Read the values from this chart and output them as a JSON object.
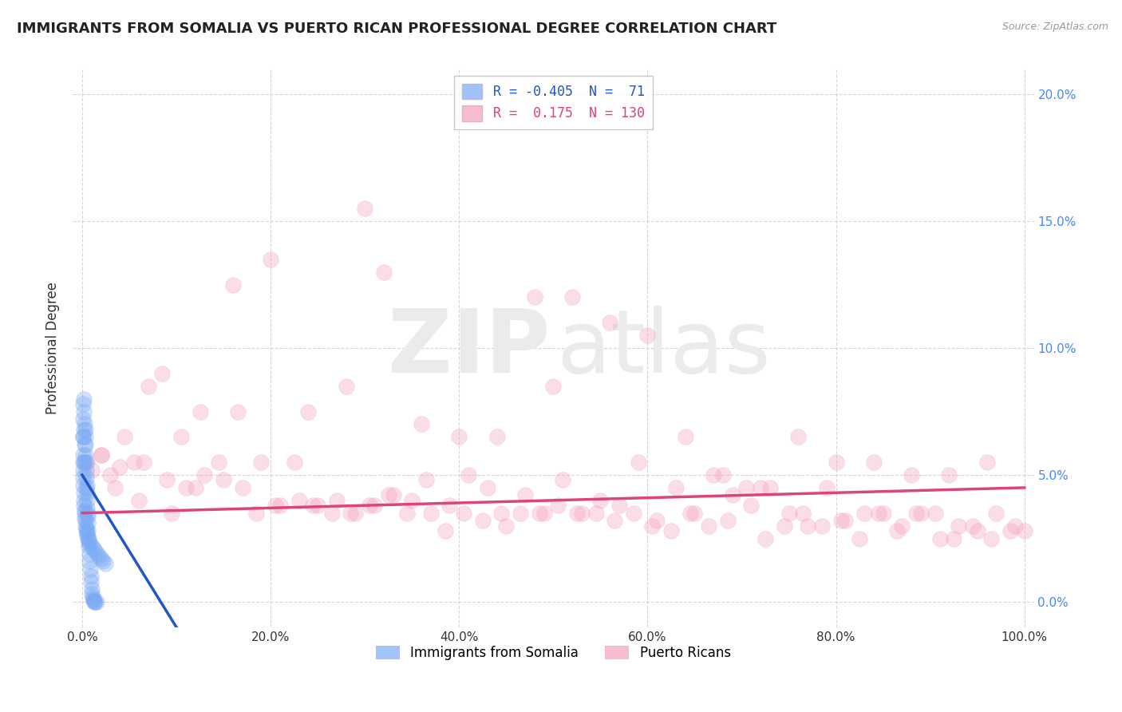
{
  "title": "IMMIGRANTS FROM SOMALIA VS PUERTO RICAN PROFESSIONAL DEGREE CORRELATION CHART",
  "source": "Source: ZipAtlas.com",
  "ylabel": "Professional Degree",
  "xlim": [
    -1,
    101
  ],
  "ylim": [
    -1,
    21
  ],
  "xticks": [
    0,
    20,
    40,
    60,
    80,
    100
  ],
  "xticklabels": [
    "0.0%",
    "20.0%",
    "40.0%",
    "60.0%",
    "80.0%",
    "100.0%"
  ],
  "yticks": [
    0,
    5,
    10,
    15,
    20
  ],
  "yticklabels": [
    "0.0%",
    "5.0%",
    "10.0%",
    "15.0%",
    "20.0%"
  ],
  "blue_R": "-0.405",
  "blue_N": "71",
  "pink_R": "0.175",
  "pink_N": "130",
  "legend_labels": [
    "Immigrants from Somalia",
    "Puerto Ricans"
  ],
  "blue_color": "#7aaaf5",
  "pink_color": "#f5a0bc",
  "blue_line_color": "#2255cc",
  "pink_line_color": "#dd4477",
  "blue_scatter_x": [
    0.05,
    0.08,
    0.1,
    0.12,
    0.15,
    0.18,
    0.2,
    0.22,
    0.25,
    0.28,
    0.3,
    0.32,
    0.35,
    0.38,
    0.4,
    0.42,
    0.45,
    0.48,
    0.5,
    0.52,
    0.55,
    0.58,
    0.6,
    0.62,
    0.65,
    0.7,
    0.75,
    0.8,
    0.85,
    0.9,
    0.95,
    1.0,
    1.05,
    1.1,
    1.15,
    1.2,
    1.25,
    1.3,
    1.4,
    1.5,
    0.05,
    0.08,
    0.1,
    0.12,
    0.15,
    0.18,
    0.2,
    0.22,
    0.25,
    0.28,
    0.3,
    0.35,
    0.4,
    0.45,
    0.5,
    0.55,
    0.6,
    0.7,
    0.8,
    1.0,
    1.2,
    1.4,
    1.6,
    1.8,
    2.0,
    2.2,
    2.5,
    0.1,
    0.2,
    0.4,
    0.6
  ],
  "blue_scatter_y": [
    7.8,
    6.5,
    7.2,
    5.8,
    8.0,
    6.8,
    7.5,
    6.2,
    7.0,
    5.5,
    6.8,
    6.5,
    6.2,
    5.8,
    5.5,
    5.2,
    4.9,
    4.6,
    4.3,
    4.0,
    3.7,
    3.4,
    3.1,
    2.8,
    2.5,
    2.2,
    1.9,
    1.6,
    1.3,
    1.0,
    0.8,
    0.5,
    0.3,
    0.2,
    0.1,
    0.05,
    0.02,
    0.01,
    0.0,
    0.0,
    5.5,
    5.2,
    4.9,
    4.6,
    4.3,
    4.0,
    3.8,
    3.6,
    3.5,
    3.3,
    3.2,
    3.0,
    2.9,
    2.8,
    2.7,
    2.6,
    2.5,
    2.4,
    2.3,
    2.2,
    2.1,
    2.0,
    1.9,
    1.8,
    1.7,
    1.6,
    1.5,
    6.5,
    5.5,
    4.5,
    3.5
  ],
  "pink_scatter_x": [
    0.5,
    1.0,
    2.0,
    3.0,
    4.0,
    5.5,
    7.0,
    9.0,
    11.0,
    13.0,
    15.0,
    17.0,
    19.0,
    21.0,
    23.0,
    25.0,
    27.0,
    29.0,
    31.0,
    33.0,
    35.0,
    37.0,
    39.0,
    41.0,
    43.0,
    45.0,
    47.0,
    49.0,
    51.0,
    53.0,
    55.0,
    57.0,
    59.0,
    61.0,
    63.0,
    65.0,
    67.0,
    69.0,
    71.0,
    73.0,
    75.0,
    77.0,
    79.0,
    81.0,
    83.0,
    85.0,
    87.0,
    89.0,
    91.0,
    93.0,
    95.0,
    97.0,
    99.0,
    2.0,
    4.5,
    6.5,
    8.5,
    10.5,
    12.5,
    14.5,
    16.5,
    18.5,
    20.5,
    22.5,
    24.5,
    26.5,
    28.5,
    30.5,
    32.5,
    34.5,
    36.5,
    38.5,
    40.5,
    42.5,
    44.5,
    46.5,
    48.5,
    50.5,
    52.5,
    54.5,
    56.5,
    58.5,
    60.5,
    62.5,
    64.5,
    66.5,
    68.5,
    70.5,
    72.5,
    74.5,
    76.5,
    78.5,
    80.5,
    82.5,
    84.5,
    86.5,
    88.5,
    90.5,
    92.5,
    94.5,
    96.5,
    98.5,
    3.5,
    6.0,
    9.5,
    12.0,
    16.0,
    20.0,
    24.0,
    28.0,
    32.0,
    36.0,
    40.0,
    44.0,
    48.0,
    52.0,
    56.0,
    60.0,
    64.0,
    68.0,
    72.0,
    76.0,
    80.0,
    84.0,
    88.0,
    92.0,
    96.0,
    100.0,
    50.0,
    30.0
  ],
  "pink_scatter_y": [
    5.5,
    5.2,
    5.8,
    5.0,
    5.3,
    5.5,
    8.5,
    4.8,
    4.5,
    5.0,
    4.8,
    4.5,
    5.5,
    3.8,
    4.0,
    3.8,
    4.0,
    3.5,
    3.8,
    4.2,
    4.0,
    3.5,
    3.8,
    5.0,
    4.5,
    3.0,
    4.2,
    3.5,
    4.8,
    3.5,
    4.0,
    3.8,
    5.5,
    3.2,
    4.5,
    3.5,
    5.0,
    4.2,
    3.8,
    4.5,
    3.5,
    3.0,
    4.5,
    3.2,
    3.5,
    3.5,
    3.0,
    3.5,
    2.5,
    3.0,
    2.8,
    3.5,
    3.0,
    5.8,
    6.5,
    5.5,
    9.0,
    6.5,
    7.5,
    5.5,
    7.5,
    3.5,
    3.8,
    5.5,
    3.8,
    3.5,
    3.5,
    3.8,
    4.2,
    3.5,
    4.8,
    2.8,
    3.5,
    3.2,
    3.5,
    3.5,
    3.5,
    3.8,
    3.5,
    3.5,
    3.2,
    3.5,
    3.0,
    2.8,
    3.5,
    3.0,
    3.2,
    4.5,
    2.5,
    3.0,
    3.5,
    3.0,
    3.2,
    2.5,
    3.5,
    2.8,
    3.5,
    3.5,
    2.5,
    3.0,
    2.5,
    2.8,
    4.5,
    4.0,
    3.5,
    4.5,
    12.5,
    13.5,
    7.5,
    8.5,
    13.0,
    7.0,
    6.5,
    6.5,
    12.0,
    12.0,
    11.0,
    10.5,
    6.5,
    5.0,
    4.5,
    6.5,
    5.5,
    5.5,
    5.0,
    5.0,
    5.5,
    2.8,
    8.5,
    15.5
  ],
  "blue_trendline_x": [
    0,
    10
  ],
  "blue_trendline_y": [
    5.0,
    -1.0
  ],
  "pink_trendline_x": [
    0,
    100
  ],
  "pink_trendline_y": [
    3.5,
    4.5
  ],
  "grid_color": "#cccccc",
  "background_color": "#ffffff",
  "watermark_color": "#ebebeb",
  "title_fontsize": 13,
  "axis_label_fontsize": 12,
  "tick_fontsize": 11,
  "scatter_size": 200,
  "scatter_alpha": 0.35,
  "ytick_color": "#4488ff",
  "xtick_color": "#333333",
  "right_ytick_color": "#4488ff"
}
